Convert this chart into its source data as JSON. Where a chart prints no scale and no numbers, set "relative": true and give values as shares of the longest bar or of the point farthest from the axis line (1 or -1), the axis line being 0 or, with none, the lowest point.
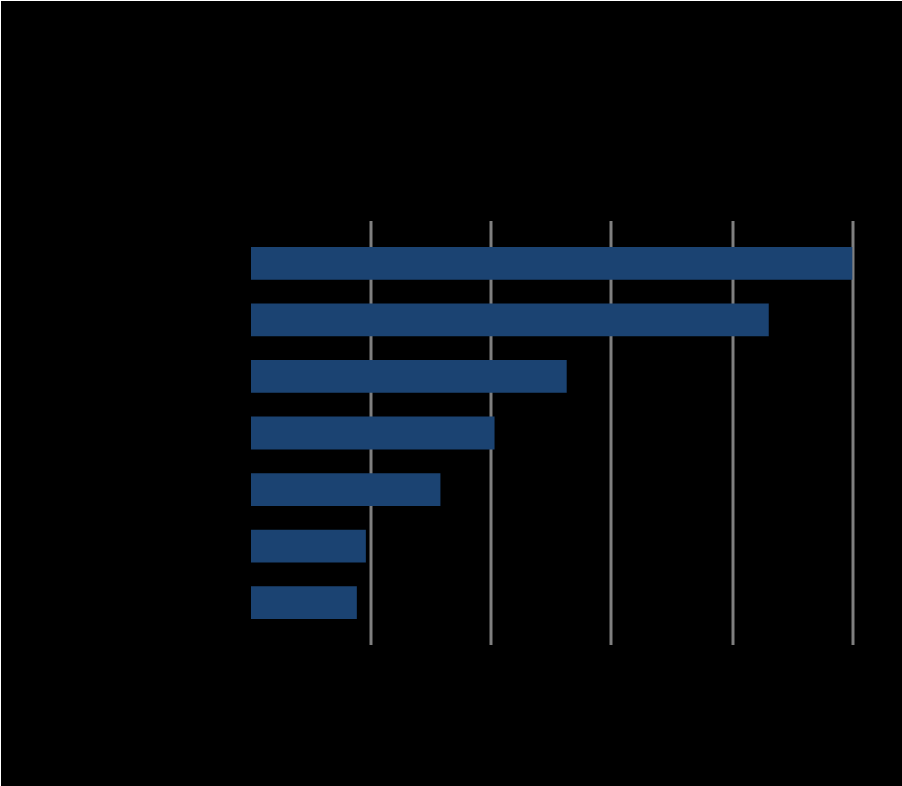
{
  "chart_data": {
    "type": "bar",
    "orientation": "horizontal",
    "relative": true,
    "categories": [
      null,
      null,
      null,
      null,
      null,
      null,
      null
    ],
    "values": [
      1,
      0.861,
      0.525,
      0.405,
      0.315,
      0.191,
      0.176
    ],
    "color": "#1b4372",
    "grid": "x",
    "tick_labels": false
  }
}
